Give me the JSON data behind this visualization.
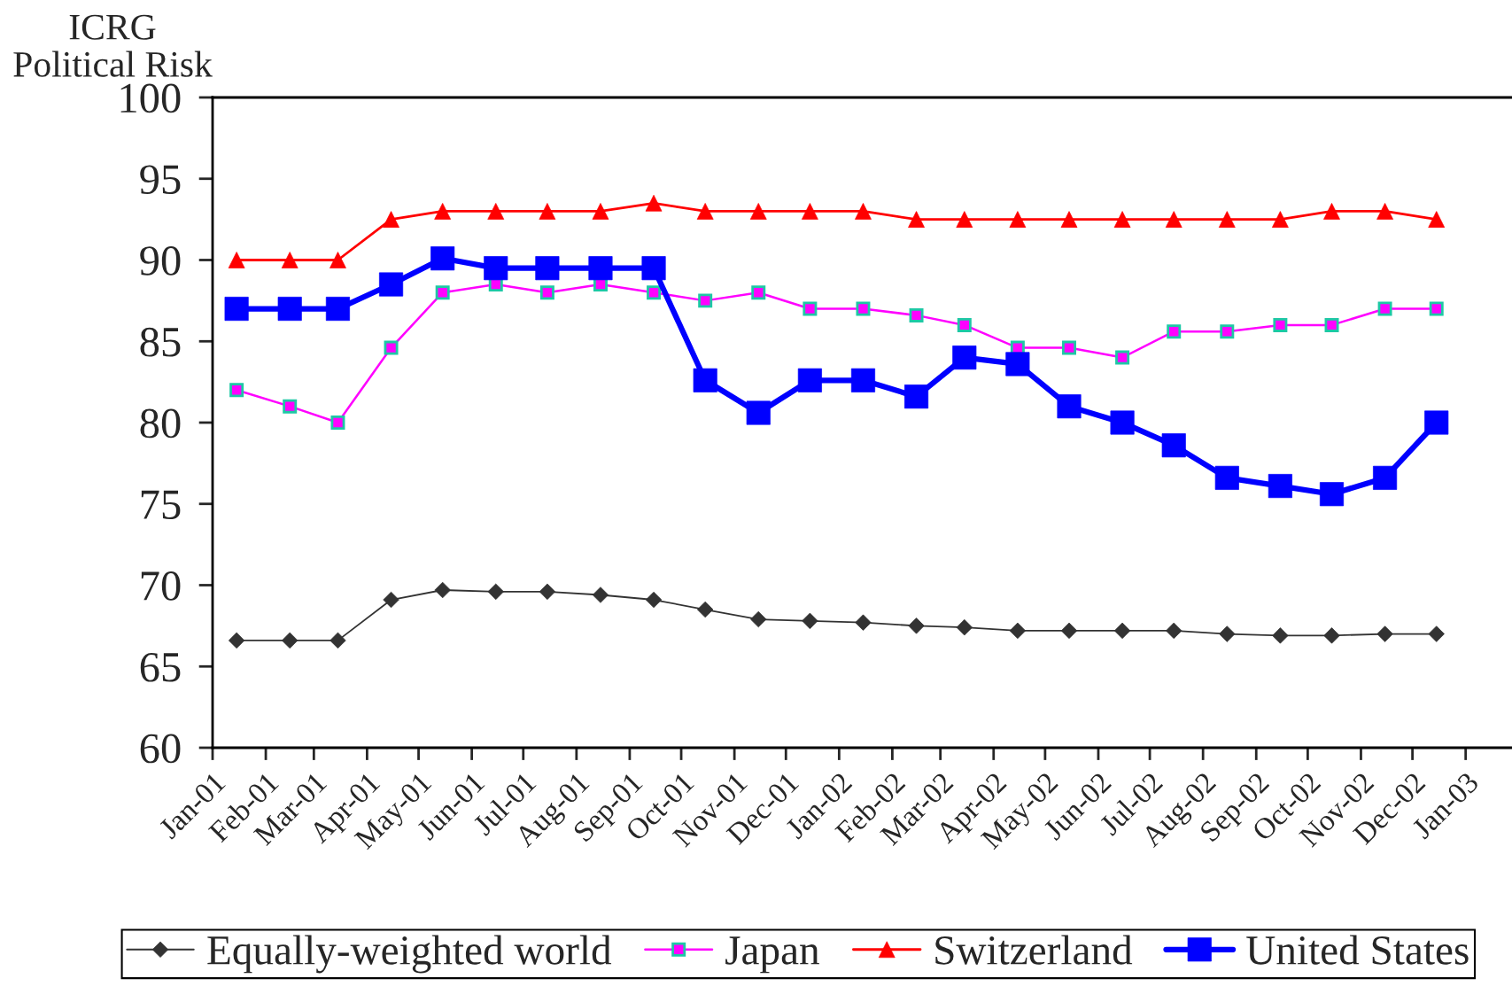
{
  "chart_data": {
    "type": "line",
    "ylabel": "ICRG\nPolitical Risk",
    "x": [
      "2001-01-15",
      "2001-02-15",
      "2001-03-15",
      "2001-04-15",
      "2001-05-15",
      "2001-06-15",
      "2001-07-15",
      "2001-08-15",
      "2001-09-15",
      "2001-10-15",
      "2001-11-15",
      "2001-12-15",
      "2002-01-15",
      "2002-02-15",
      "2002-03-15",
      "2002-04-15",
      "2002-05-15",
      "2002-06-15",
      "2002-07-15",
      "2002-08-15",
      "2002-09-15",
      "2002-10-15",
      "2002-11-15",
      "2002-12-15"
    ],
    "series": [
      {
        "name": "Equally-weighted world",
        "color": "#333333",
        "marker": "diamond",
        "values": [
          66.6,
          66.6,
          66.6,
          69.1,
          69.7,
          69.6,
          69.6,
          69.4,
          69.1,
          68.5,
          67.9,
          67.8,
          67.7,
          67.5,
          67.4,
          67.2,
          67.2,
          67.2,
          67.2,
          67.0,
          66.9,
          66.9,
          67.0,
          67.0
        ]
      },
      {
        "name": "Japan",
        "color": "#ff00ff",
        "marker": "square",
        "values": [
          82.0,
          81.0,
          80.0,
          84.6,
          88.0,
          88.5,
          88.0,
          88.5,
          88.0,
          87.5,
          88.0,
          87.0,
          87.0,
          86.6,
          86.0,
          84.6,
          84.6,
          84.0,
          85.6,
          85.6,
          86.0,
          86.0,
          87.0,
          87.0
        ]
      },
      {
        "name": "Switzerland",
        "color": "#ff0000",
        "marker": "triangle",
        "values": [
          90,
          90,
          90,
          92.5,
          93,
          93,
          93,
          93,
          93.5,
          93,
          93,
          93,
          93,
          92.5,
          92.5,
          92.5,
          92.5,
          92.5,
          92.5,
          92.5,
          92.5,
          93,
          93,
          92.5
        ]
      },
      {
        "name": "United States",
        "color": "#0000ff",
        "marker": "square",
        "values": [
          87.0,
          87.0,
          87.0,
          88.5,
          90.1,
          89.5,
          89.5,
          89.5,
          89.5,
          82.6,
          80.6,
          82.6,
          82.6,
          81.6,
          84.0,
          83.6,
          81.0,
          80.0,
          78.6,
          76.6,
          76.1,
          75.6,
          76.6,
          80.0
        ]
      }
    ],
    "xlim": [
      "2001-01-01",
      "2003-01-28"
    ],
    "xticks": [
      {
        "value": "2001-01-01",
        "label": "Jan-01"
      },
      {
        "value": "2001-02-01",
        "label": "Feb-01"
      },
      {
        "value": "2001-03-01",
        "label": "Mar-01"
      },
      {
        "value": "2001-04-01",
        "label": "Apr-01"
      },
      {
        "value": "2001-05-01",
        "label": "May-01"
      },
      {
        "value": "2001-06-01",
        "label": "Jun-01"
      },
      {
        "value": "2001-07-01",
        "label": "Jul-01"
      },
      {
        "value": "2001-08-01",
        "label": "Aug-01"
      },
      {
        "value": "2001-09-01",
        "label": "Sep-01"
      },
      {
        "value": "2001-10-01",
        "label": "Oct-01"
      },
      {
        "value": "2001-11-01",
        "label": "Nov-01"
      },
      {
        "value": "2001-12-01",
        "label": "Dec-01"
      },
      {
        "value": "2002-01-01",
        "label": "Jan-02"
      },
      {
        "value": "2002-02-01",
        "label": "Feb-02"
      },
      {
        "value": "2002-03-01",
        "label": "Mar-02"
      },
      {
        "value": "2002-04-01",
        "label": "Apr-02"
      },
      {
        "value": "2002-05-01",
        "label": "May-02"
      },
      {
        "value": "2002-06-01",
        "label": "Jun-02"
      },
      {
        "value": "2002-07-01",
        "label": "Jul-02"
      },
      {
        "value": "2002-08-01",
        "label": "Aug-02"
      },
      {
        "value": "2002-09-01",
        "label": "Sep-02"
      },
      {
        "value": "2002-10-01",
        "label": "Oct-02"
      },
      {
        "value": "2002-11-01",
        "label": "Nov-02"
      },
      {
        "value": "2002-12-01",
        "label": "Dec-02"
      },
      {
        "value": "2003-01-01",
        "label": "Jan-03"
      }
    ],
    "ylim": [
      60,
      100
    ],
    "yticks": [
      60,
      65,
      70,
      75,
      80,
      85,
      90,
      95,
      100
    ],
    "grid": false,
    "legend": "bottom",
    "line_style": "solid"
  }
}
